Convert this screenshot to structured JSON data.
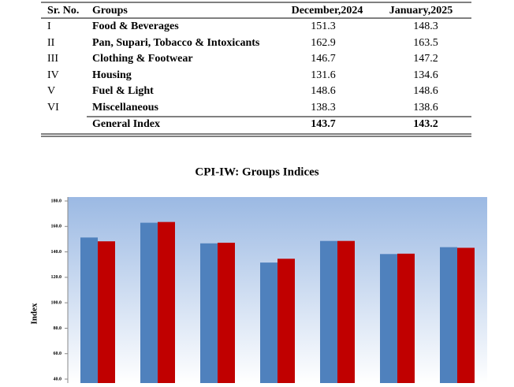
{
  "table": {
    "columns": [
      "Sr. No.",
      "Groups",
      "December,2024",
      "January,2025"
    ],
    "rows": [
      [
        "I",
        "Food & Beverages",
        "151.3",
        "148.3"
      ],
      [
        "II",
        "Pan, Supari, Tobacco & Intoxicants",
        "162.9",
        "163.5"
      ],
      [
        "III",
        "Clothing & Footwear",
        "146.7",
        "147.2"
      ],
      [
        "IV",
        "Housing",
        "131.6",
        "134.6"
      ],
      [
        "V",
        "Fuel & Light",
        "148.6",
        "148.6"
      ],
      [
        "VI",
        "Miscellaneous",
        "138.3",
        "138.6"
      ]
    ],
    "total": {
      "label": "General Index",
      "values": [
        "143.7",
        "143.2"
      ]
    }
  },
  "chart_data": {
    "type": "bar",
    "title": "CPI-IW: Groups Indices",
    "ylabel": "Index",
    "categories": [
      null,
      null,
      null,
      null,
      null,
      null,
      null
    ],
    "series": [
      {
        "color": "#4f81bd",
        "values": [
          151.3,
          162.9,
          146.7,
          131.6,
          148.6,
          138.3,
          143.7
        ]
      },
      {
        "color": "#c00000",
        "values": [
          148.3,
          163.5,
          147.2,
          134.6,
          148.6,
          138.6,
          143.2
        ]
      }
    ],
    "ylim": [
      40,
      180
    ],
    "yticks": [
      {
        "value": 40,
        "label": "40.0"
      },
      {
        "value": 60,
        "label": "60.0"
      },
      {
        "value": 80,
        "label": "80.0"
      },
      {
        "value": 100,
        "label": "100.0"
      },
      {
        "value": 120,
        "label": "120.0"
      },
      {
        "value": 140,
        "label": "140.0"
      },
      {
        "value": 160,
        "label": "160.0"
      },
      {
        "value": 180,
        "label": "180.0"
      }
    ]
  }
}
